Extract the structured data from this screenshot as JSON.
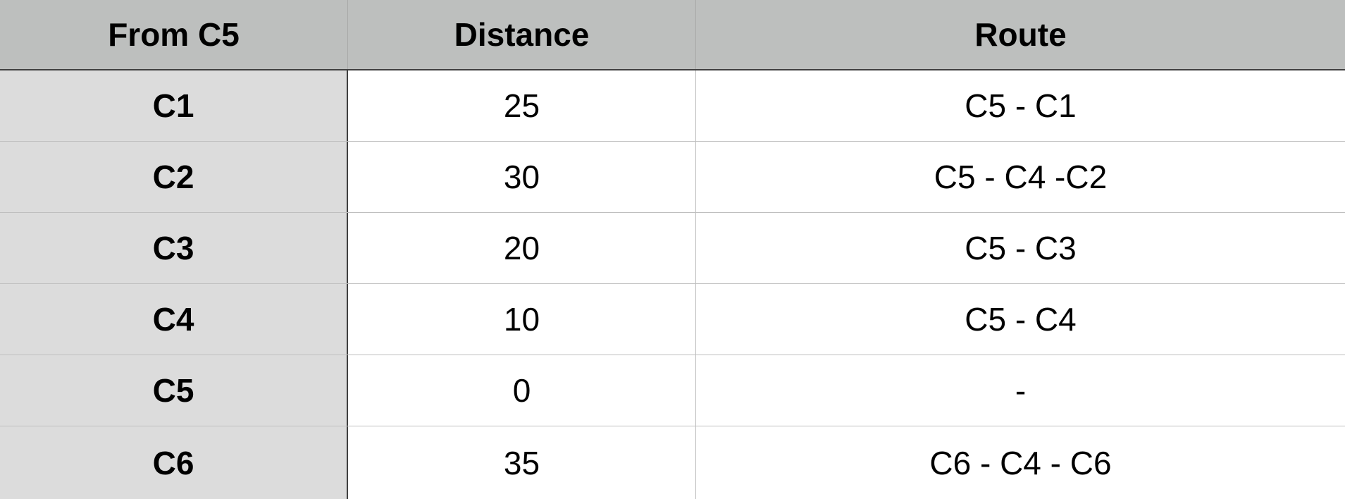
{
  "header": {
    "from": "From C5",
    "distance": "Distance",
    "route": "Route"
  },
  "rows": [
    {
      "node": "C1",
      "distance": "25",
      "route": "C5 - C1"
    },
    {
      "node": "C2",
      "distance": "30",
      "route": "C5 - C4 -C2"
    },
    {
      "node": "C3",
      "distance": "20",
      "route": "C5 - C3"
    },
    {
      "node": "C4",
      "distance": "10",
      "route": "C5 - C4"
    },
    {
      "node": "C5",
      "distance": "0",
      "route": "-"
    },
    {
      "node": "C6",
      "distance": "35",
      "route": "C6 - C4 - C6"
    }
  ]
}
